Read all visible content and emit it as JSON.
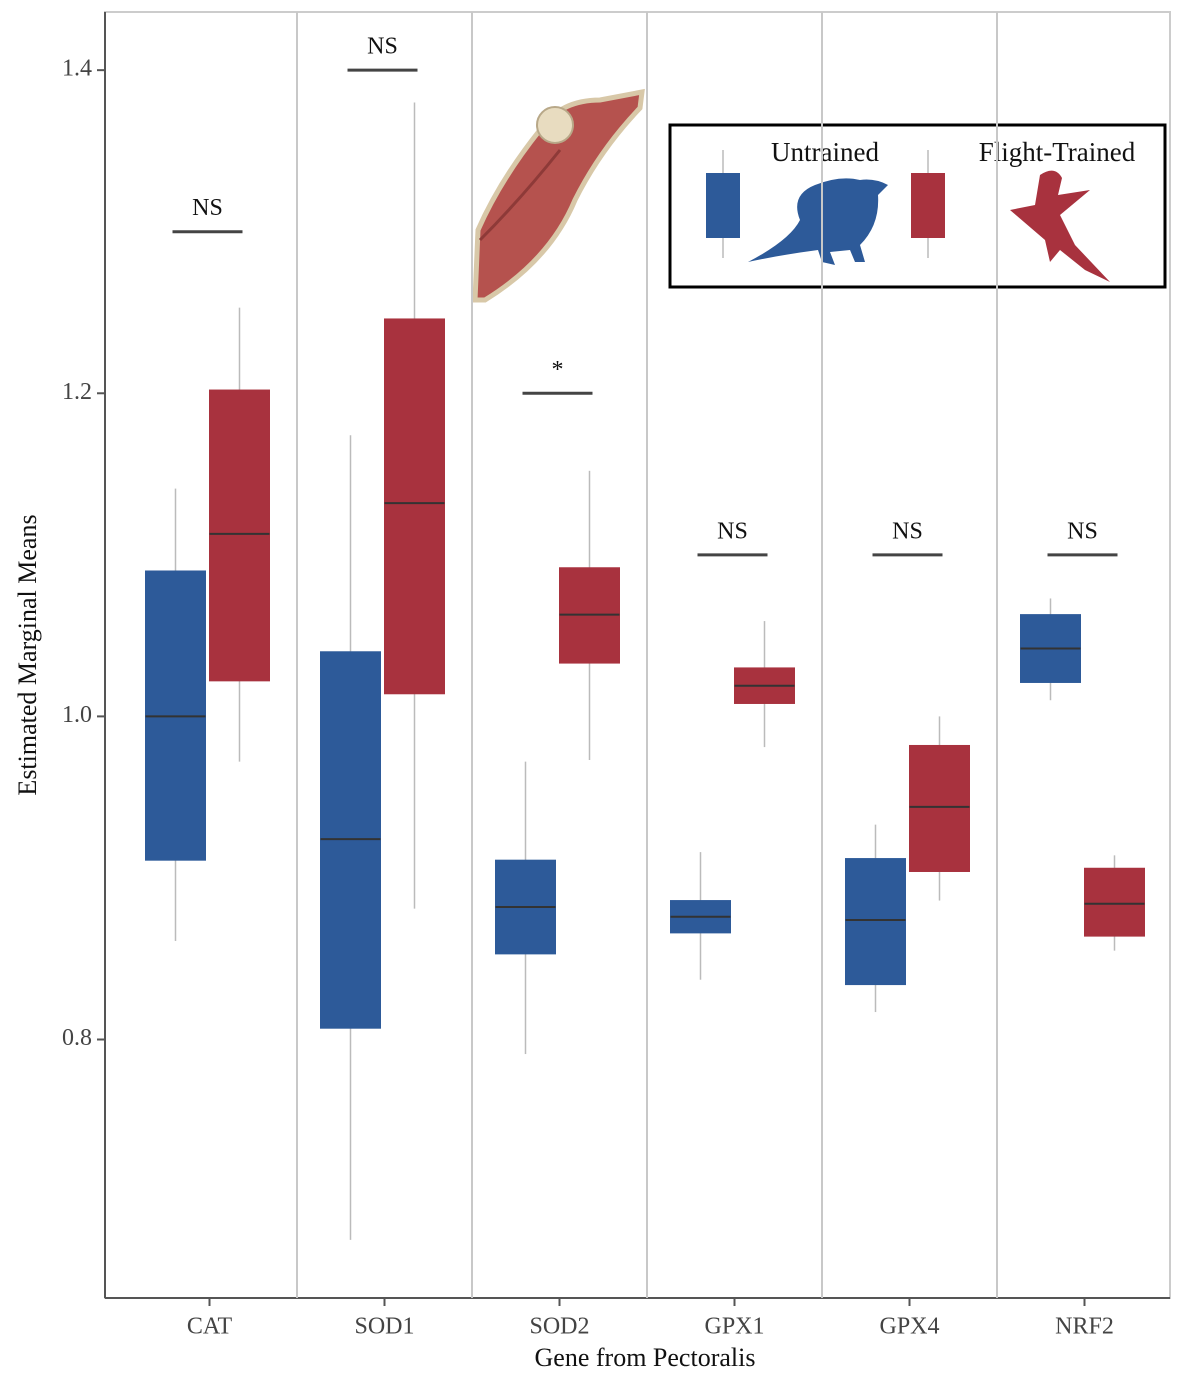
{
  "chart_data": {
    "type": "box",
    "x_label": "Gene from Pectoralis",
    "y_label": "Estimated Marginal Means",
    "categories": [
      "CAT",
      "SOD1",
      "SOD2",
      "GPX1",
      "GPX4",
      "NRF2"
    ],
    "ylim": [
      0.64,
      1.436
    ],
    "yticks": [
      0.8,
      {
        "value": 1,
        "label": "1.0"
      },
      1.2,
      1.4
    ],
    "series": [
      {
        "name": "Untrained",
        "color": "#2d5a99",
        "boxes": [
          {
            "min": 0.861,
            "q1": 0.911,
            "median": 1.0,
            "q3": 1.09,
            "max": 1.141
          },
          {
            "min": 0.676,
            "q1": 0.807,
            "median": 0.924,
            "q3": 1.04,
            "max": 1.174
          },
          {
            "min": 0.791,
            "q1": 0.853,
            "median": 0.882,
            "q3": 0.911,
            "max": 0.972
          },
          {
            "min": 0.837,
            "q1": 0.866,
            "median": 0.876,
            "q3": 0.886,
            "max": 0.916
          },
          {
            "min": 0.817,
            "q1": 0.834,
            "median": 0.874,
            "q3": 0.912,
            "max": 0.933
          },
          {
            "min": 1.01,
            "q1": 1.021,
            "median": 1.042,
            "q3": 1.063,
            "max": 1.073
          }
        ]
      },
      {
        "name": "Flight-Trained",
        "color": "#a8323e",
        "boxes": [
          {
            "min": 0.972,
            "q1": 1.022,
            "median": 1.113,
            "q3": 1.202,
            "max": 1.253
          },
          {
            "min": 0.881,
            "q1": 1.014,
            "median": 1.132,
            "q3": 1.246,
            "max": 1.38
          },
          {
            "min": 0.973,
            "q1": 1.033,
            "median": 1.063,
            "q3": 1.092,
            "max": 1.152
          },
          {
            "min": 0.981,
            "q1": 1.008,
            "median": 1.019,
            "q3": 1.03,
            "max": 1.059
          },
          {
            "min": 0.886,
            "q1": 0.904,
            "median": 0.944,
            "q3": 0.982,
            "max": 1.0
          },
          {
            "min": 0.855,
            "q1": 0.864,
            "median": 0.884,
            "q3": 0.906,
            "max": 0.914
          }
        ]
      }
    ],
    "annotations": [
      {
        "x": "CAT",
        "y": 1.3,
        "text": "NS"
      },
      {
        "x": "SOD1",
        "y": 1.4,
        "text": "NS"
      },
      {
        "x": "SOD2",
        "y": 1.2,
        "text": "*"
      },
      {
        "x": "GPX1",
        "y": 1.1,
        "text": "NS"
      },
      {
        "x": "GPX4",
        "y": 1.1,
        "text": "NS"
      },
      {
        "x": "NRF2",
        "y": 1.1,
        "text": "NS"
      }
    ],
    "legend_position": "top-right"
  }
}
